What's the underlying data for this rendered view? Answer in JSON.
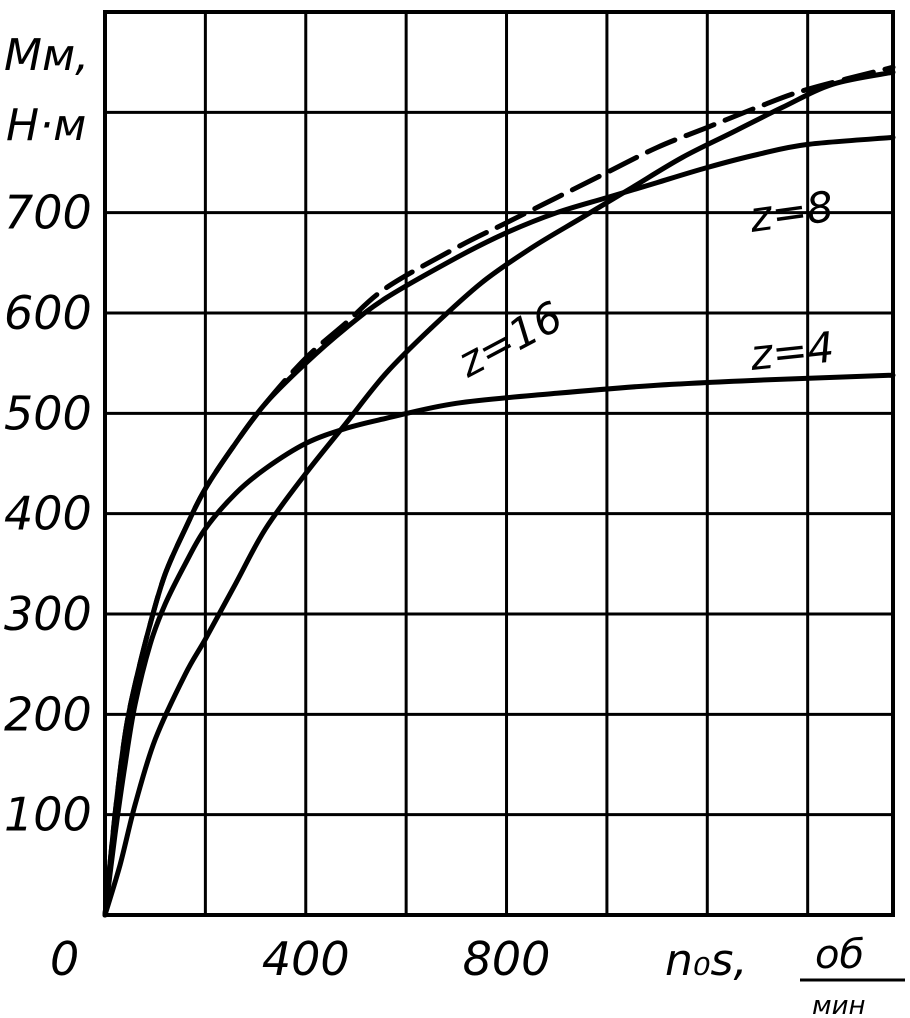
{
  "chart_data": {
    "type": "line",
    "title": "",
    "ylabel_line1": "Mм,",
    "ylabel_line2": "H·м",
    "xlabel": "n₀s,",
    "xlabel_unit_top": "об",
    "xlabel_unit_bottom": "мин",
    "origin_label": "0",
    "xlim": [
      0,
      1570
    ],
    "ylim": [
      0,
      900
    ],
    "grid": true,
    "x_ticks": [
      {
        "value": 400,
        "label": "400"
      },
      {
        "value": 800,
        "label": "800"
      }
    ],
    "y_ticks": [
      {
        "value": 100,
        "label": "100"
      },
      {
        "value": 200,
        "label": "200"
      },
      {
        "value": 300,
        "label": "300"
      },
      {
        "value": 400,
        "label": "400"
      },
      {
        "value": 500,
        "label": "500"
      },
      {
        "value": 600,
        "label": "600"
      },
      {
        "value": 700,
        "label": "700"
      }
    ],
    "series": [
      {
        "name": "z=4",
        "dashed": false,
        "points": [
          [
            0,
            0
          ],
          [
            20,
            80
          ],
          [
            40,
            150
          ],
          [
            60,
            210
          ],
          [
            90,
            270
          ],
          [
            120,
            310
          ],
          [
            160,
            350
          ],
          [
            200,
            385
          ],
          [
            260,
            420
          ],
          [
            320,
            445
          ],
          [
            400,
            470
          ],
          [
            480,
            485
          ],
          [
            560,
            495
          ],
          [
            700,
            510
          ],
          [
            900,
            520
          ],
          [
            1100,
            528
          ],
          [
            1300,
            533
          ],
          [
            1570,
            538
          ]
        ]
      },
      {
        "name": "z=8",
        "dashed": false,
        "points": [
          [
            0,
            0
          ],
          [
            20,
            100
          ],
          [
            40,
            180
          ],
          [
            60,
            230
          ],
          [
            90,
            290
          ],
          [
            120,
            340
          ],
          [
            160,
            385
          ],
          [
            200,
            425
          ],
          [
            260,
            470
          ],
          [
            320,
            510
          ],
          [
            400,
            550
          ],
          [
            480,
            585
          ],
          [
            560,
            615
          ],
          [
            700,
            655
          ],
          [
            800,
            680
          ],
          [
            900,
            700
          ],
          [
            1000,
            715
          ],
          [
            1100,
            730
          ],
          [
            1200,
            745
          ],
          [
            1300,
            758
          ],
          [
            1400,
            768
          ],
          [
            1570,
            775
          ]
        ]
      },
      {
        "name": "z=16",
        "dashed": false,
        "points": [
          [
            0,
            0
          ],
          [
            30,
            50
          ],
          [
            60,
            110
          ],
          [
            100,
            175
          ],
          [
            160,
            240
          ],
          [
            200,
            275
          ],
          [
            260,
            330
          ],
          [
            320,
            385
          ],
          [
            400,
            440
          ],
          [
            480,
            490
          ],
          [
            560,
            540
          ],
          [
            650,
            585
          ],
          [
            750,
            630
          ],
          [
            850,
            665
          ],
          [
            950,
            695
          ],
          [
            1050,
            725
          ],
          [
            1150,
            755
          ],
          [
            1250,
            780
          ],
          [
            1350,
            805
          ],
          [
            1450,
            828
          ],
          [
            1570,
            840
          ]
        ]
      },
      {
        "name": "",
        "dashed": true,
        "points": [
          [
            0,
            0
          ],
          [
            20,
            100
          ],
          [
            40,
            180
          ],
          [
            60,
            230
          ],
          [
            90,
            290
          ],
          [
            120,
            340
          ],
          [
            160,
            385
          ],
          [
            200,
            425
          ],
          [
            260,
            470
          ],
          [
            320,
            510
          ],
          [
            400,
            555
          ],
          [
            480,
            590
          ],
          [
            560,
            625
          ],
          [
            700,
            665
          ],
          [
            800,
            690
          ],
          [
            900,
            715
          ],
          [
            1000,
            740
          ],
          [
            1100,
            765
          ],
          [
            1200,
            785
          ],
          [
            1300,
            805
          ],
          [
            1400,
            823
          ],
          [
            1570,
            845
          ]
        ]
      }
    ],
    "curve_labels": [
      {
        "series": "z=8",
        "text": "z=8"
      },
      {
        "series": "z=16",
        "text": "z=16"
      },
      {
        "series": "z=4",
        "text": "z=4"
      }
    ]
  }
}
